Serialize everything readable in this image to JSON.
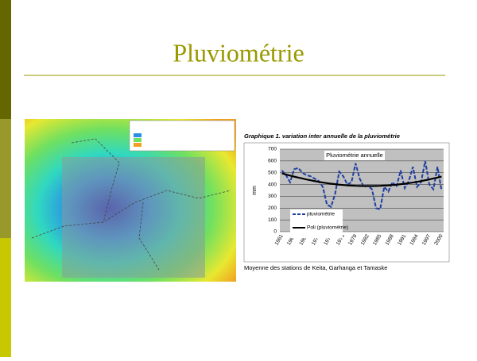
{
  "slide": {
    "title": "Pluviométrie"
  },
  "chart_data": {
    "type": "line",
    "title": "Graphique 1. variation inter annuelle de la pluviométrie",
    "subtitle": "Pluviométrie annuelle",
    "y_label": "mm",
    "caption": "Moyenne des stations de Keita, Garhanga et Tamaske",
    "categories": [
      1961,
      null,
      null,
      1964,
      null,
      null,
      1967,
      null,
      null,
      1970,
      null,
      null,
      1973,
      null,
      null,
      1976,
      null,
      null,
      1979,
      null,
      null,
      1982,
      null,
      null,
      1985,
      null,
      null,
      1988,
      null,
      null,
      1991,
      null,
      null,
      1994,
      null,
      null,
      1997,
      null,
      null,
      2000
    ],
    "series": [
      {
        "name": "pluviométrie",
        "color": "#1f3fa0",
        "dashed": true,
        "values": [
          520,
          480,
          420,
          530,
          540,
          500,
          480,
          470,
          450,
          430,
          380,
          230,
          210,
          320,
          510,
          470,
          400,
          420,
          580,
          450,
          380,
          390,
          360,
          200,
          190,
          380,
          340,
          420,
          380,
          520,
          370,
          430,
          550,
          380,
          420,
          600,
          400,
          360,
          550,
          350
        ]
      },
      {
        "name": "Poli (pluviométrie)",
        "color": "#000000",
        "dashed": false,
        "values": [
          495,
          485,
          476,
          467,
          459,
          451,
          443,
          436,
          429,
          423,
          417,
          412,
          407,
          403,
          399,
          396,
          393,
          391,
          389,
          388,
          387,
          387,
          387,
          388,
          389,
          391,
          393,
          396,
          399,
          403,
          407,
          412,
          417,
          423,
          429,
          436,
          443,
          451,
          459,
          467
        ]
      }
    ],
    "ylim": [
      0,
      700
    ],
    "yticks": [
      0,
      100,
      200,
      300,
      400,
      500,
      600,
      700
    ],
    "grid": true
  }
}
